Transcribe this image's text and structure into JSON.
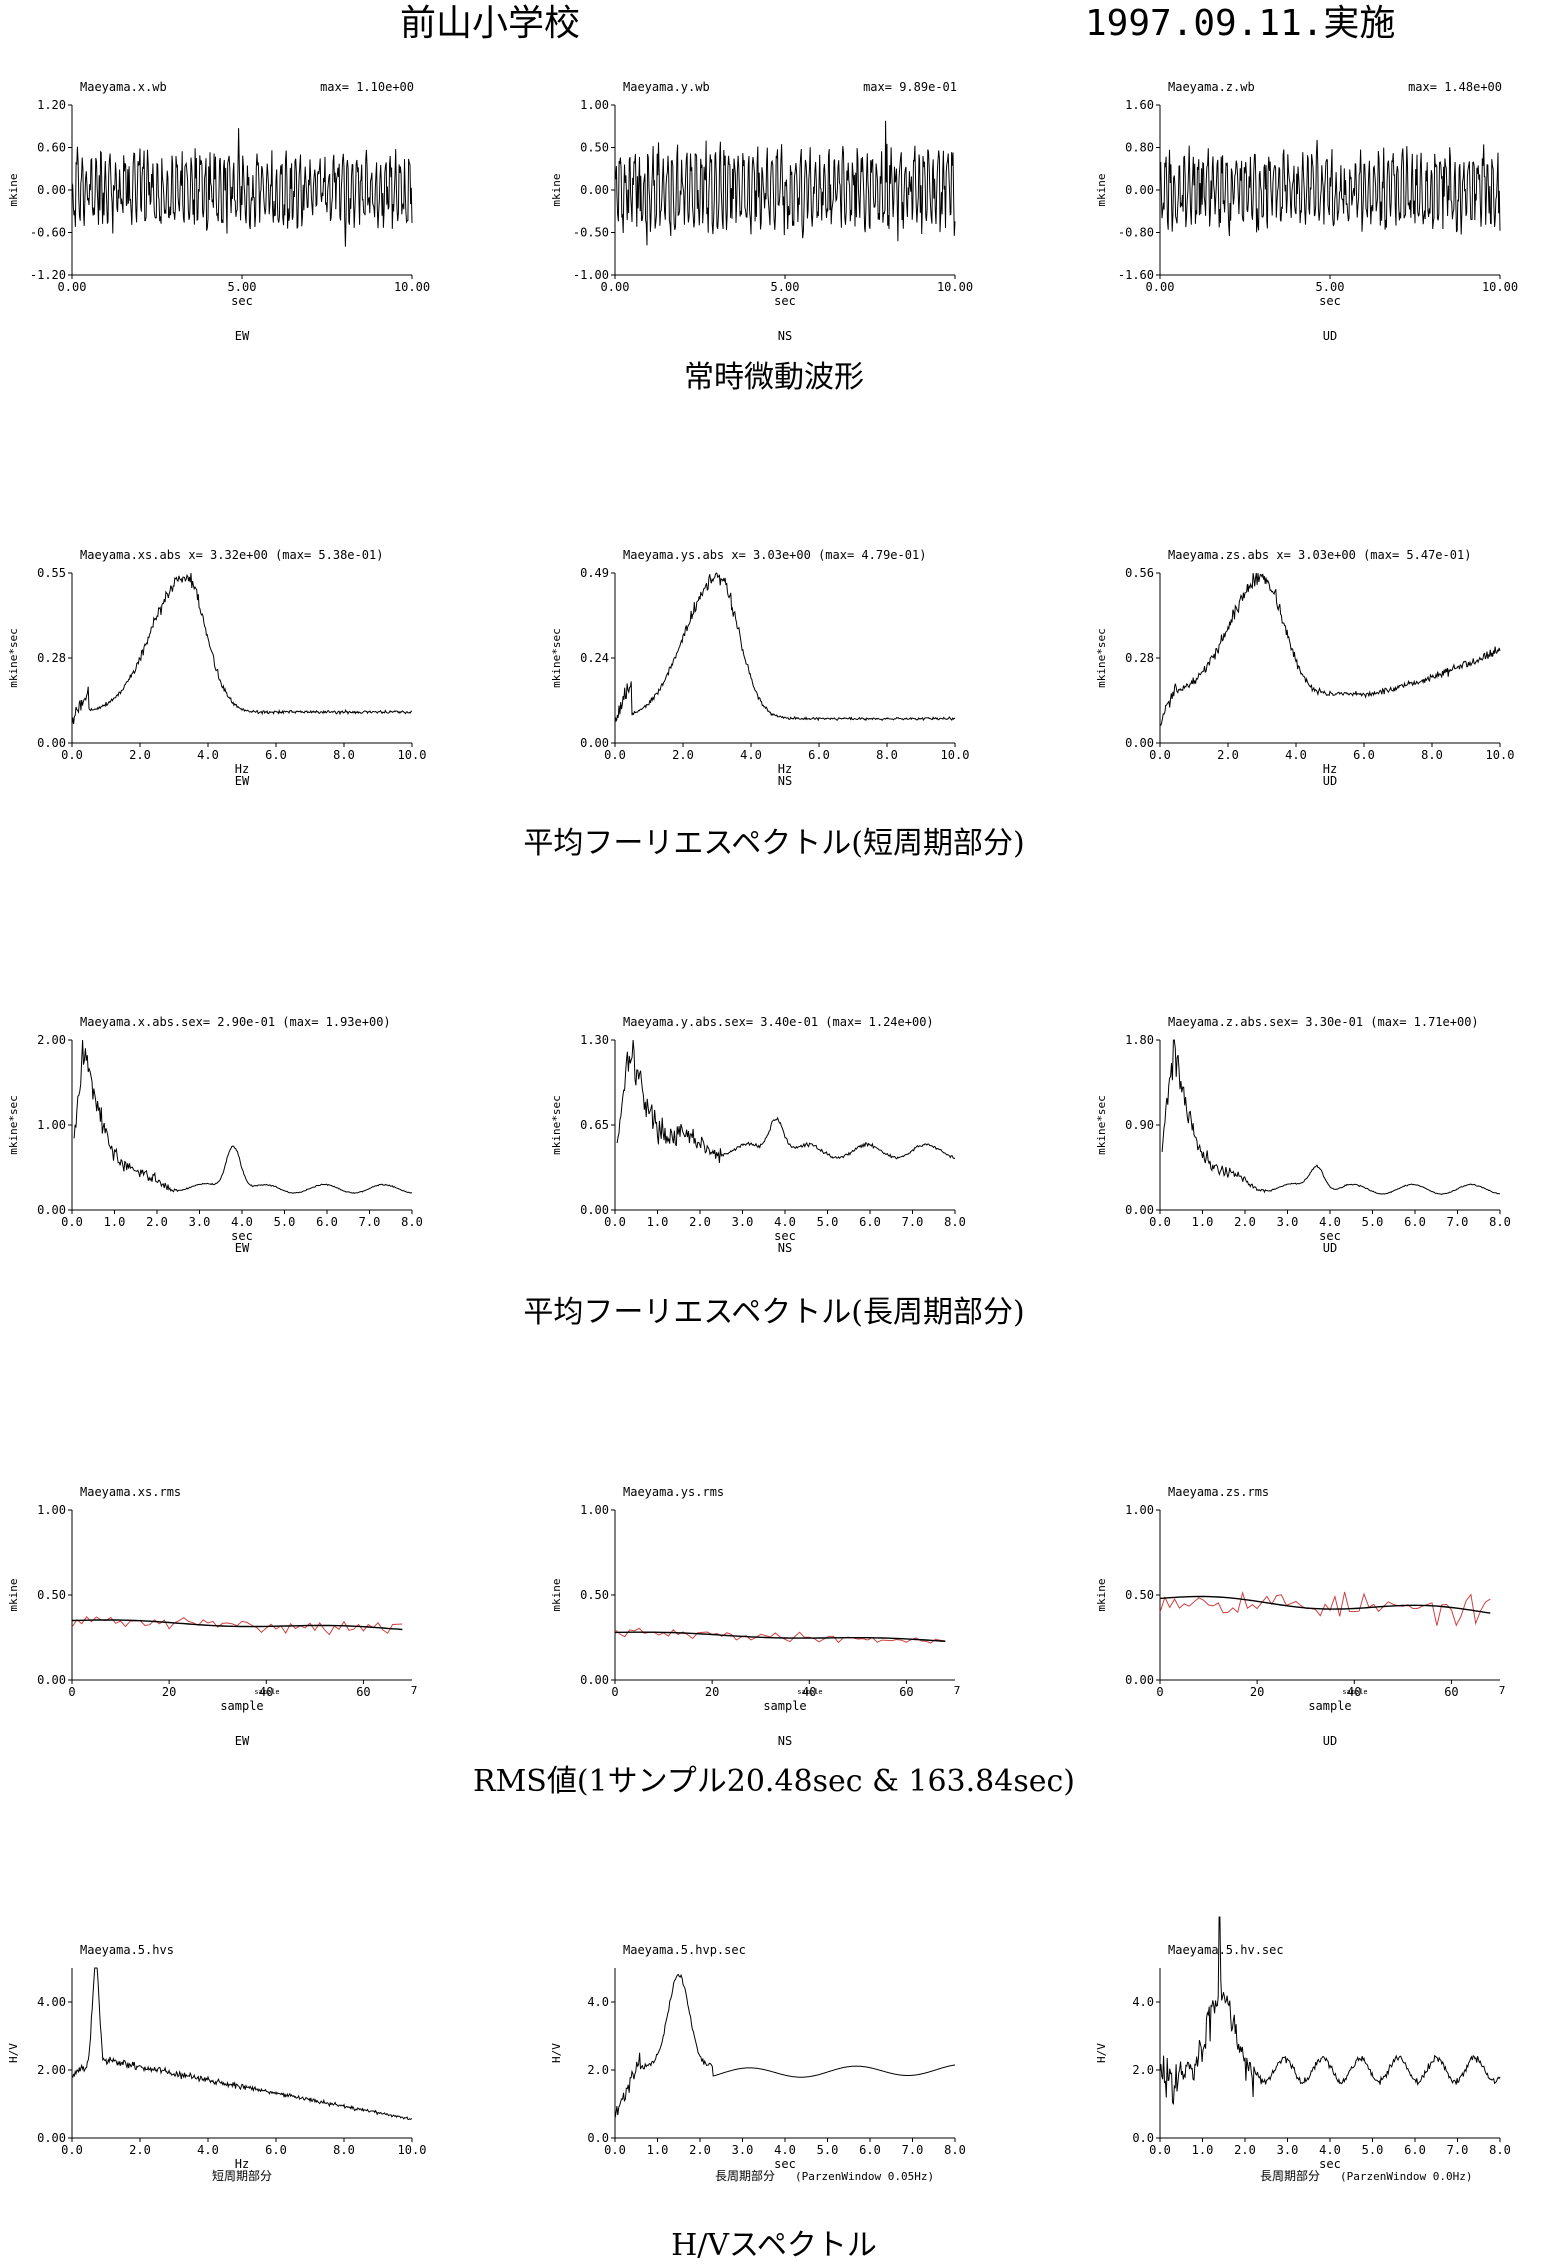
{
  "header": {
    "site": "前山小学校",
    "date": "1997.09.11.実施"
  },
  "sections": [
    "常時微動波形",
    "平均フーリエスペクトル(短周期部分)",
    "平均フーリエスペクトル(長周期部分)",
    "RMS値(1サンプル20.48sec & 163.84sec)",
    "H/Vスペクトル"
  ],
  "colors": {
    "trace": "#000000",
    "rms_raw": "#d04040",
    "axis": "#000000"
  },
  "chart_data": [
    {
      "type": "line",
      "name": "Maeyama.x.wb",
      "header_right": "max= 1.10e+00",
      "ylabel": "mkine",
      "xlabel": "sec",
      "component": "EW",
      "ylim": [
        -1.2,
        1.2
      ],
      "yticks": [
        "-1.20",
        "-0.60",
        "0.00",
        "0.60",
        "1.20"
      ],
      "xlim": [
        0,
        10
      ],
      "xticks": [
        "0.00",
        "5.00",
        "10.00"
      ],
      "shape": "noise",
      "amp": 0.8,
      "seed": 11
    },
    {
      "type": "line",
      "name": "Maeyama.y.wb",
      "header_right": "max= 9.89e-01",
      "ylabel": "mkine",
      "xlabel": "sec",
      "component": "NS",
      "ylim": [
        -1.0,
        1.0
      ],
      "yticks": [
        "-1.00",
        "-0.50",
        "0.00",
        "0.50",
        "1.00"
      ],
      "xlim": [
        0,
        10
      ],
      "xticks": [
        "0.00",
        "5.00",
        "10.00"
      ],
      "shape": "noise",
      "amp": 0.75,
      "seed": 23
    },
    {
      "type": "line",
      "name": "Maeyama.z.wb",
      "header_right": "max= 1.48e+00",
      "ylabel": "mkine",
      "xlabel": "sec",
      "component": "UD",
      "ylim": [
        -1.6,
        1.6
      ],
      "yticks": [
        "-1.60",
        "-0.80",
        "0.00",
        "0.80",
        "1.60"
      ],
      "xlim": [
        0,
        10
      ],
      "xticks": [
        "0.00",
        "5.00",
        "10.00"
      ],
      "shape": "noise",
      "amp": 1.1,
      "seed": 37
    },
    {
      "type": "line",
      "name": "Maeyama.xs.abs  x= 3.32e+00 (max= 5.38e-01)",
      "header_right": "",
      "ylabel": "mkine*sec",
      "xlabel": "Hz",
      "component": "EW",
      "ylim": [
        0,
        0.55
      ],
      "yticks": [
        "0.00",
        "0.28",
        "0.55"
      ],
      "xlim": [
        0,
        10
      ],
      "xticks": [
        "0.0",
        "2.0",
        "4.0",
        "6.0",
        "8.0",
        "10.0"
      ],
      "shape": "fourier",
      "peak_x": 3.32,
      "peak_y": 0.538,
      "tail": 0.1,
      "seed": 5
    },
    {
      "type": "line",
      "name": "Maeyama.ys.abs  x= 3.03e+00 (max= 4.79e-01)",
      "header_right": "",
      "ylabel": "mkine*sec",
      "xlabel": "Hz",
      "component": "NS",
      "ylim": [
        0,
        0.49
      ],
      "yticks": [
        "0.00",
        "0.24",
        "0.49"
      ],
      "xlim": [
        0,
        10
      ],
      "xticks": [
        "0.0",
        "2.0",
        "4.0",
        "6.0",
        "8.0",
        "10.0"
      ],
      "shape": "fourier",
      "peak_x": 3.03,
      "peak_y": 0.479,
      "tail": 0.07,
      "seed": 9
    },
    {
      "type": "line",
      "name": "Maeyama.zs.abs  x= 3.03e+00 (max= 5.47e-01)",
      "header_right": "",
      "ylabel": "mkine*sec",
      "xlabel": "Hz",
      "component": "UD",
      "ylim": [
        0,
        0.56
      ],
      "yticks": [
        "0.00",
        "0.28",
        "0.56"
      ],
      "xlim": [
        0,
        10
      ],
      "xticks": [
        "0.0",
        "2.0",
        "4.0",
        "6.0",
        "8.0",
        "10.0"
      ],
      "shape": "fourier_up",
      "peak_x": 3.03,
      "peak_y": 0.547,
      "tail": 0.16,
      "end": 0.31,
      "seed": 13
    },
    {
      "type": "line",
      "name": "Maeyama.x.abs.sex= 2.90e-01 (max= 1.93e+00)",
      "header_right": "",
      "ylabel": "mkine*sec",
      "xlabel": "sec",
      "component": "EW",
      "ylim": [
        0,
        2.0
      ],
      "yticks": [
        "0.00",
        "1.00",
        "2.00"
      ],
      "xlim": [
        0,
        8
      ],
      "xticks": [
        "0.0",
        "1.0",
        "2.0",
        "3.0",
        "4.0",
        "5.0",
        "6.0",
        "7.0",
        "8.0"
      ],
      "shape": "longper",
      "peak_x": 0.29,
      "peak_y": 1.93,
      "base": 0.25,
      "bump_x": 3.8,
      "bump_y": 0.8,
      "seed": 3
    },
    {
      "type": "line",
      "name": "Maeyama.y.abs.sex= 3.40e-01 (max= 1.24e+00)",
      "header_right": "",
      "ylabel": "mkine*sec",
      "xlabel": "sec",
      "component": "NS",
      "ylim": [
        0,
        1.3
      ],
      "yticks": [
        "0.00",
        "0.65",
        "1.30"
      ],
      "xlim": [
        0,
        8
      ],
      "xticks": [
        "0.0",
        "1.0",
        "2.0",
        "3.0",
        "4.0",
        "5.0",
        "6.0",
        "7.0",
        "8.0"
      ],
      "shape": "longper",
      "peak_x": 0.34,
      "peak_y": 1.24,
      "base": 0.45,
      "bump_x": 3.8,
      "bump_y": 0.75,
      "seed": 17
    },
    {
      "type": "line",
      "name": "Maeyama.z.abs.sex= 3.30e-01 (max= 1.71e+00)",
      "header_right": "",
      "ylabel": "mkine*sec",
      "xlabel": "sec",
      "component": "UD",
      "ylim": [
        0,
        1.8
      ],
      "yticks": [
        "0.00",
        "0.90",
        "1.80"
      ],
      "xlim": [
        0,
        8
      ],
      "xticks": [
        "0.0",
        "1.0",
        "2.0",
        "3.0",
        "4.0",
        "5.0",
        "6.0",
        "7.0",
        "8.0"
      ],
      "shape": "longper",
      "peak_x": 0.33,
      "peak_y": 1.71,
      "base": 0.22,
      "bump_x": 3.7,
      "bump_y": 0.5,
      "seed": 21
    },
    {
      "type": "line",
      "name": "Maeyama.xs.rms",
      "header_right": "",
      "ylabel": "mkine",
      "xlabel": "sample",
      "mid_label": "sample",
      "component": "EW",
      "ylim": [
        0,
        1.0
      ],
      "yticks": [
        "0.00",
        "0.50",
        "1.00"
      ],
      "xlim": [
        0,
        70
      ],
      "xticks": [
        "0",
        "20",
        "40",
        "60"
      ],
      "edge_tick": "7",
      "shape": "rms",
      "level": 0.35,
      "level_end": 0.3,
      "spread": 0.04,
      "seed": 31
    },
    {
      "type": "line",
      "name": "Maeyama.ys.rms",
      "header_right": "",
      "ylabel": "mkine",
      "xlabel": "sample",
      "mid_label": "sample",
      "component": "NS",
      "ylim": [
        0,
        1.0
      ],
      "yticks": [
        "0.00",
        "0.50",
        "1.00"
      ],
      "xlim": [
        0,
        70
      ],
      "xticks": [
        "0",
        "20",
        "40",
        "60"
      ],
      "edge_tick": "7",
      "shape": "rms",
      "level": 0.28,
      "level_end": 0.23,
      "spread": 0.03,
      "seed": 41
    },
    {
      "type": "line",
      "name": "Maeyama.zs.rms",
      "header_right": "",
      "ylabel": "mkine",
      "xlabel": "sample",
      "mid_label": "sample",
      "component": "UD",
      "ylim": [
        0,
        1.0
      ],
      "yticks": [
        "0.00",
        "0.50",
        "1.00"
      ],
      "xlim": [
        0,
        70
      ],
      "xticks": [
        "0",
        "20",
        "40",
        "60"
      ],
      "edge_tick": "7",
      "shape": "rms",
      "level": 0.48,
      "level_end": 0.4,
      "spread": 0.09,
      "seed": 53
    },
    {
      "type": "line",
      "name": "Maeyama.5.hvs",
      "header_right": "",
      "ylabel": "H/V",
      "xlabel": "Hz",
      "component": "短周期部分",
      "ylim": [
        0,
        5.0
      ],
      "yticks": [
        "0.00",
        "2.00",
        "4.00"
      ],
      "ytickvals": [
        0,
        2,
        4
      ],
      "xlim": [
        0,
        10
      ],
      "xticks": [
        "0.0",
        "2.0",
        "4.0",
        "6.0",
        "8.0",
        "10.0"
      ],
      "shape": "hv_short",
      "seed": 61
    },
    {
      "type": "line",
      "name": "Maeyama.5.hvp.sec",
      "header_right": "",
      "ylabel": "H/V",
      "xlabel": "sec",
      "component": "長周期部分",
      "component_note": "(ParzenWindow 0.05Hz)",
      "ylim": [
        0,
        5.0
      ],
      "yticks": [
        "0.0",
        "2.0",
        "4.0"
      ],
      "ytickvals": [
        0,
        2,
        4
      ],
      "xlim": [
        0,
        8
      ],
      "xticks": [
        "0.0",
        "1.0",
        "2.0",
        "3.0",
        "4.0",
        "5.0",
        "6.0",
        "7.0",
        "8.0"
      ],
      "shape": "hv_smooth",
      "seed": 71
    },
    {
      "type": "line",
      "name": "Maeyama.5.hv.sec",
      "header_right": "",
      "ylabel": "H/V",
      "xlabel": "sec",
      "component": "長周期部分",
      "component_note": "(ParzenWindow 0.0Hz)",
      "ylim": [
        0,
        5.0
      ],
      "yticks": [
        "0.0",
        "2.0",
        "4.0"
      ],
      "ytickvals": [
        0,
        2,
        4
      ],
      "xlim": [
        0,
        8
      ],
      "xticks": [
        "0.0",
        "1.0",
        "2.0",
        "3.0",
        "4.0",
        "5.0",
        "6.0",
        "7.0",
        "8.0"
      ],
      "shape": "hv_raw",
      "seed": 83
    }
  ]
}
